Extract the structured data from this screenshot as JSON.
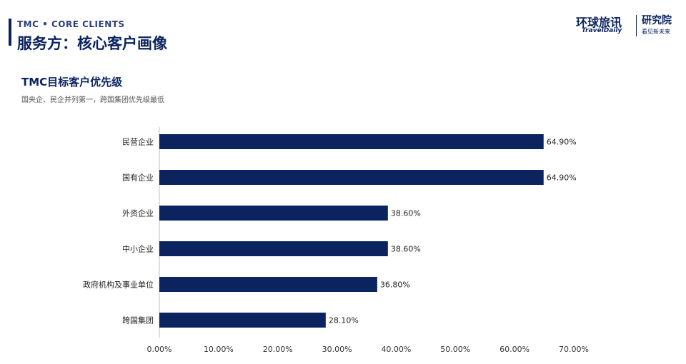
{
  "header": {
    "eyebrow": "TMC • CORE CLIENTS",
    "title": "服务方：核心客户画像"
  },
  "brand": {
    "name_cn": "环球旅讯",
    "name_en": "TravelDaily",
    "institute": "研究院",
    "slogan": "看见新未来"
  },
  "colors": {
    "accent": "#0b2460",
    "bar": "#0b2460"
  },
  "chart_data": {
    "type": "bar",
    "orientation": "horizontal",
    "title": "TMC目标客户优先级",
    "subtitle": "国央企、民企并列第一，跨国集团优先级最低",
    "categories": [
      "民营企业",
      "国有企业",
      "外资企业",
      "中小企业",
      "政府机构及事业单位",
      "跨国集团"
    ],
    "values": [
      64.9,
      64.9,
      38.6,
      38.6,
      36.8,
      28.1
    ],
    "value_labels": [
      "64.90%",
      "64.90%",
      "38.60%",
      "38.60%",
      "36.80%",
      "28.10%"
    ],
    "xlim": [
      0,
      70
    ],
    "xticks": [
      0,
      10,
      20,
      30,
      40,
      50,
      60,
      70
    ],
    "xtick_labels": [
      "0.00%",
      "10.00%",
      "20.00%",
      "30.00%",
      "40.00%",
      "50.00%",
      "60.00%",
      "70.00%"
    ],
    "grid": false,
    "legend": "none"
  }
}
